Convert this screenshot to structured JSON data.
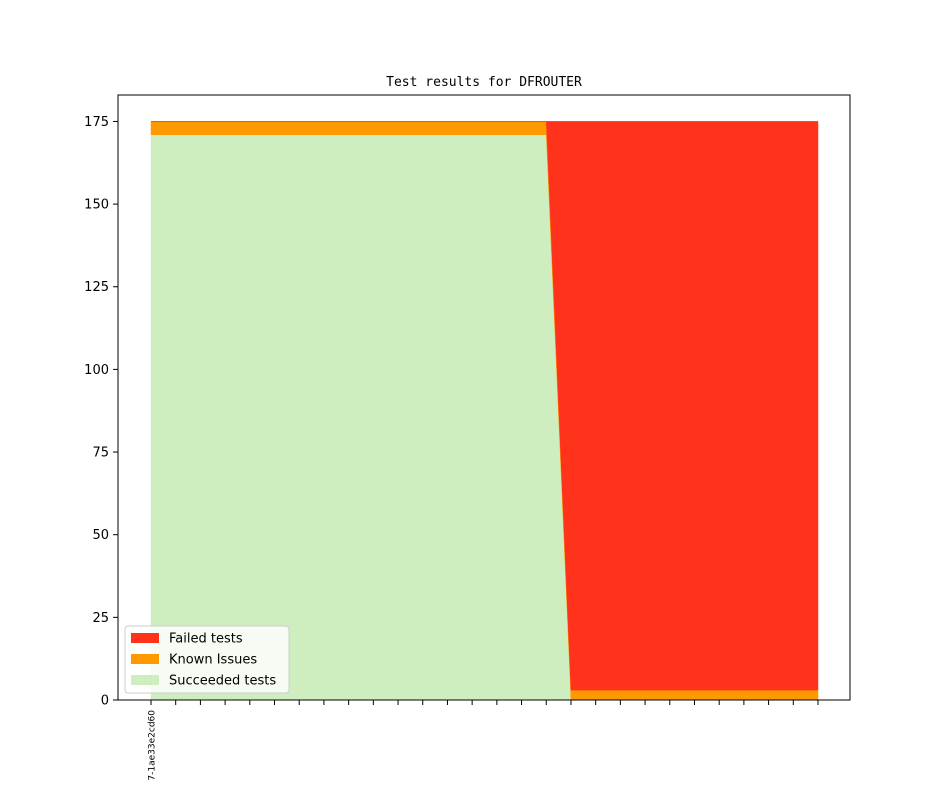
{
  "chart_data": {
    "type": "area",
    "stacked": true,
    "title": "Test results for DFROUTER",
    "xlabel": "",
    "ylabel": "",
    "x_tick_labels": [
      "7-1ae33e2cd60"
    ],
    "x_tick_count": 28,
    "x": [
      0,
      16,
      17,
      27
    ],
    "ylim": [
      0,
      183
    ],
    "yticks": [
      0,
      25,
      50,
      75,
      100,
      125,
      150,
      175
    ],
    "grid": false,
    "legend_position": "lower-left",
    "series": [
      {
        "name": "Succeeded tests",
        "color": "#cfeec0",
        "values": [
          171,
          171,
          0,
          0
        ]
      },
      {
        "name": "Known Issues",
        "color": "#ff9900",
        "values": [
          4,
          4,
          3,
          3
        ]
      },
      {
        "name": "Failed tests",
        "color": "#ff331c",
        "values": [
          0,
          0,
          172,
          172
        ]
      }
    ],
    "legend_order": [
      "Failed tests",
      "Known Issues",
      "Succeeded tests"
    ]
  }
}
